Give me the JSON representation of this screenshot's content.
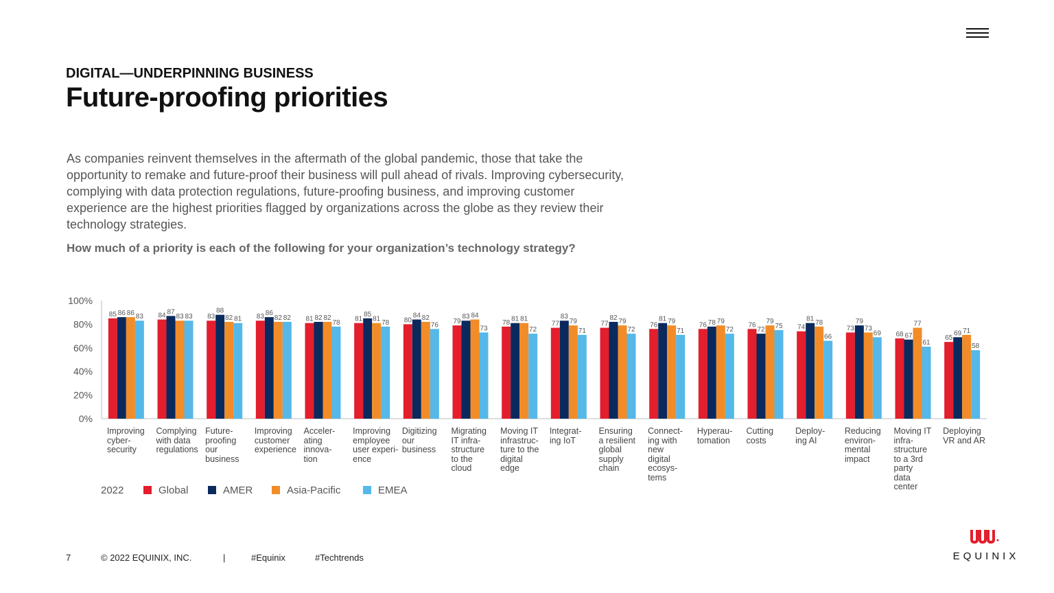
{
  "header": {
    "kicker": "DIGITAL—UNDERPINNING BUSINESS",
    "title": "Future-proofing priorities",
    "menu_icon": "hamburger-menu-icon"
  },
  "intro": "As companies reinvent themselves in the aftermath of the global pandemic, those that take the opportunity to remake and future-proof their business will pull ahead of rivals. Improving cybersecurity, complying with data protection regulations, future-proofing business, and improving customer experience are the highest priorities flagged by organizations across the globe as they review their technology strategies.",
  "question": "How much of a priority is each of the following for your organization’s technology strategy?",
  "chart_data": {
    "type": "bar",
    "title": "",
    "xlabel": "",
    "ylabel": "",
    "ylim": [
      0,
      100
    ],
    "y_ticks": [
      "0%",
      "20%",
      "40%",
      "60%",
      "80%",
      "100%"
    ],
    "grid": false,
    "legend_position": "bottom-left",
    "legend_title": "2022",
    "categories": [
      [
        "Improving",
        "cyber-",
        "security"
      ],
      [
        "Complying",
        "with data",
        "regulations"
      ],
      [
        "Future-",
        "proofing",
        "our",
        "business"
      ],
      [
        "Improving",
        "customer",
        "experience"
      ],
      [
        "Acceler-",
        "ating",
        "innova-",
        "tion"
      ],
      [
        "Improving",
        "employee",
        "user experi-",
        "ence"
      ],
      [
        "Digitizing",
        "our",
        "business"
      ],
      [
        "Migrating",
        "IT infra-",
        "structure",
        "to the",
        "cloud"
      ],
      [
        "Moving IT",
        "infrastruc-",
        "ture to the",
        "digital",
        "edge"
      ],
      [
        "Integrat-",
        "ing IoT"
      ],
      [
        "Ensuring",
        "a resilient",
        "global",
        "supply",
        "chain"
      ],
      [
        "Connect-",
        "ing with",
        "new",
        "digital",
        "ecosys-",
        "tems"
      ],
      [
        "Hyperau-",
        "tomation"
      ],
      [
        "Cutting",
        "costs"
      ],
      [
        "Deploy-",
        "ing AI"
      ],
      [
        "Reducing",
        "environ-",
        "mental",
        "impact"
      ],
      [
        "Moving IT",
        "infra-",
        "structure",
        "to a 3rd",
        "party",
        "data",
        "center"
      ],
      [
        "Deploying",
        "VR and AR"
      ]
    ],
    "series": [
      {
        "name": "Global",
        "color": "#e31e2d",
        "values": [
          85,
          84,
          83,
          83,
          81,
          81,
          80,
          79,
          78,
          77,
          77,
          76,
          76,
          76,
          74,
          73,
          68,
          65
        ]
      },
      {
        "name": "AMER",
        "color": "#0a2a5e",
        "values": [
          86,
          87,
          88,
          86,
          82,
          85,
          84,
          83,
          81,
          83,
          82,
          81,
          78,
          72,
          81,
          79,
          67,
          69
        ]
      },
      {
        "name": "Asia-Pacific",
        "color": "#f28c28",
        "values": [
          86,
          83,
          82,
          82,
          82,
          81,
          82,
          84,
          81,
          79,
          79,
          79,
          79,
          79,
          78,
          73,
          77,
          71
        ]
      },
      {
        "name": "EMEA",
        "color": "#55b8e8",
        "values": [
          83,
          83,
          81,
          82,
          78,
          78,
          76,
          73,
          72,
          71,
          72,
          71,
          72,
          75,
          66,
          69,
          61,
          58
        ]
      }
    ]
  },
  "footer": {
    "page_number": "7",
    "copyright": "© 2022 EQUINIX, INC.",
    "separator": "|",
    "hashtag1": "#Equinix",
    "hashtag2": "#Techtrends"
  },
  "logo": {
    "text": "EQUINIX",
    "icon": "equinix-logo-icon",
    "color": "#e31e2d"
  }
}
